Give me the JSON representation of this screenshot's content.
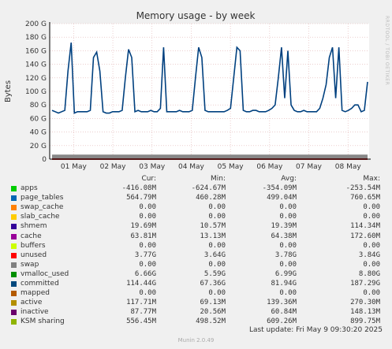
{
  "chart_data": {
    "type": "line",
    "title": "Memory usage - by week",
    "ylabel": "Bytes",
    "ylim": [
      0,
      200
    ],
    "y_unit": "G",
    "yticks": [
      "0",
      "20 G",
      "40 G",
      "60 G",
      "80 G",
      "100 G",
      "120 G",
      "140 G",
      "160 G",
      "180 G",
      "200 G"
    ],
    "xticks": [
      "01 May",
      "02 May",
      "03 May",
      "04 May",
      "05 May",
      "06 May",
      "07 May",
      "08 May"
    ],
    "grid": true,
    "series": [
      {
        "name": "unused",
        "color": "#ccff00",
        "values_note": "approx 3.8 G constant",
        "values": [
          3.8
        ]
      },
      {
        "name": "vmalloc_used",
        "color": "#888888",
        "values": [
          6.7
        ]
      },
      {
        "name": "committed",
        "color": "#00407f",
        "values": [
          72,
          70,
          68,
          70,
          72,
          130,
          172,
          68,
          70,
          70,
          70,
          70,
          72,
          150,
          158,
          130,
          70,
          68,
          68,
          70,
          70,
          70,
          72,
          120,
          162,
          150,
          70,
          72,
          70,
          70,
          70,
          72,
          70,
          70,
          75,
          165,
          70,
          70,
          70,
          70,
          72,
          70,
          70,
          70,
          72,
          120,
          165,
          150,
          72,
          70,
          70,
          70,
          70,
          70,
          70,
          72,
          75,
          120,
          165,
          160,
          72,
          70,
          70,
          72,
          72,
          70,
          70,
          70,
          72,
          75,
          80,
          120,
          165,
          90,
          160,
          80,
          72,
          70,
          70,
          72,
          70,
          70,
          70,
          70,
          75,
          90,
          110,
          150,
          165,
          90,
          165,
          72,
          70,
          72,
          75,
          80,
          80,
          70,
          72,
          114
        ]
      },
      {
        "name": "swap",
        "color": "#cc0000",
        "values": [
          0
        ]
      },
      {
        "name": "inactive",
        "color": "#8f0000",
        "values": [
          0
        ]
      }
    ]
  },
  "side_label": "RRDTOOL / TOBI OETIKER",
  "legend": {
    "headers": {
      "cur": "Cur:",
      "min": "Min:",
      "avg": "Avg:",
      "max": "Max:"
    },
    "rows": [
      {
        "name": "apps",
        "color": "#00cc00",
        "cur": "-416.08M",
        "min": "-624.67M",
        "avg": "-354.09M",
        "max": "-253.54M"
      },
      {
        "name": "page_tables",
        "color": "#0066b3",
        "cur": "564.79M",
        "min": "460.28M",
        "avg": "499.04M",
        "max": "760.65M"
      },
      {
        "name": "swap_cache",
        "color": "#ff8000",
        "cur": "0.00",
        "min": "0.00",
        "avg": "0.00",
        "max": "0.00"
      },
      {
        "name": "slab_cache",
        "color": "#ffcc00",
        "cur": "0.00",
        "min": "0.00",
        "avg": "0.00",
        "max": "0.00"
      },
      {
        "name": "shmem",
        "color": "#330099",
        "cur": "19.69M",
        "min": "10.57M",
        "avg": "19.39M",
        "max": "114.34M"
      },
      {
        "name": "cache",
        "color": "#990099",
        "cur": "63.81M",
        "min": "13.13M",
        "avg": "64.38M",
        "max": "172.60M"
      },
      {
        "name": "buffers",
        "color": "#ccff00",
        "cur": "0.00",
        "min": "0.00",
        "avg": "0.00",
        "max": "0.00"
      },
      {
        "name": "unused",
        "color": "#ff0000",
        "cur": "3.77G",
        "min": "3.64G",
        "avg": "3.78G",
        "max": "3.84G"
      },
      {
        "name": "swap",
        "color": "#808080",
        "cur": "0.00",
        "min": "0.00",
        "avg": "0.00",
        "max": "0.00"
      },
      {
        "name": "vmalloc_used",
        "color": "#008f00",
        "cur": "6.66G",
        "min": "5.59G",
        "avg": "6.99G",
        "max": "8.80G"
      },
      {
        "name": "committed",
        "color": "#00487d",
        "cur": "114.44G",
        "min": "67.36G",
        "avg": "81.94G",
        "max": "187.29G"
      },
      {
        "name": "mapped",
        "color": "#b35a00",
        "cur": "0.00",
        "min": "0.00",
        "avg": "0.00",
        "max": "0.00"
      },
      {
        "name": "active",
        "color": "#b38f00",
        "cur": "117.71M",
        "min": "69.13M",
        "avg": "139.36M",
        "max": "270.30M"
      },
      {
        "name": "inactive",
        "color": "#6b006b",
        "cur": "87.77M",
        "min": "20.56M",
        "avg": "60.84M",
        "max": "148.13M"
      },
      {
        "name": "KSM sharing",
        "color": "#8fb300",
        "cur": "556.45M",
        "min": "498.52M",
        "avg": "609.26M",
        "max": "899.75M"
      }
    ]
  },
  "last_update": "Last update: Fri May  9 09:30:20 2025",
  "munin": "Munin 2.0.49"
}
